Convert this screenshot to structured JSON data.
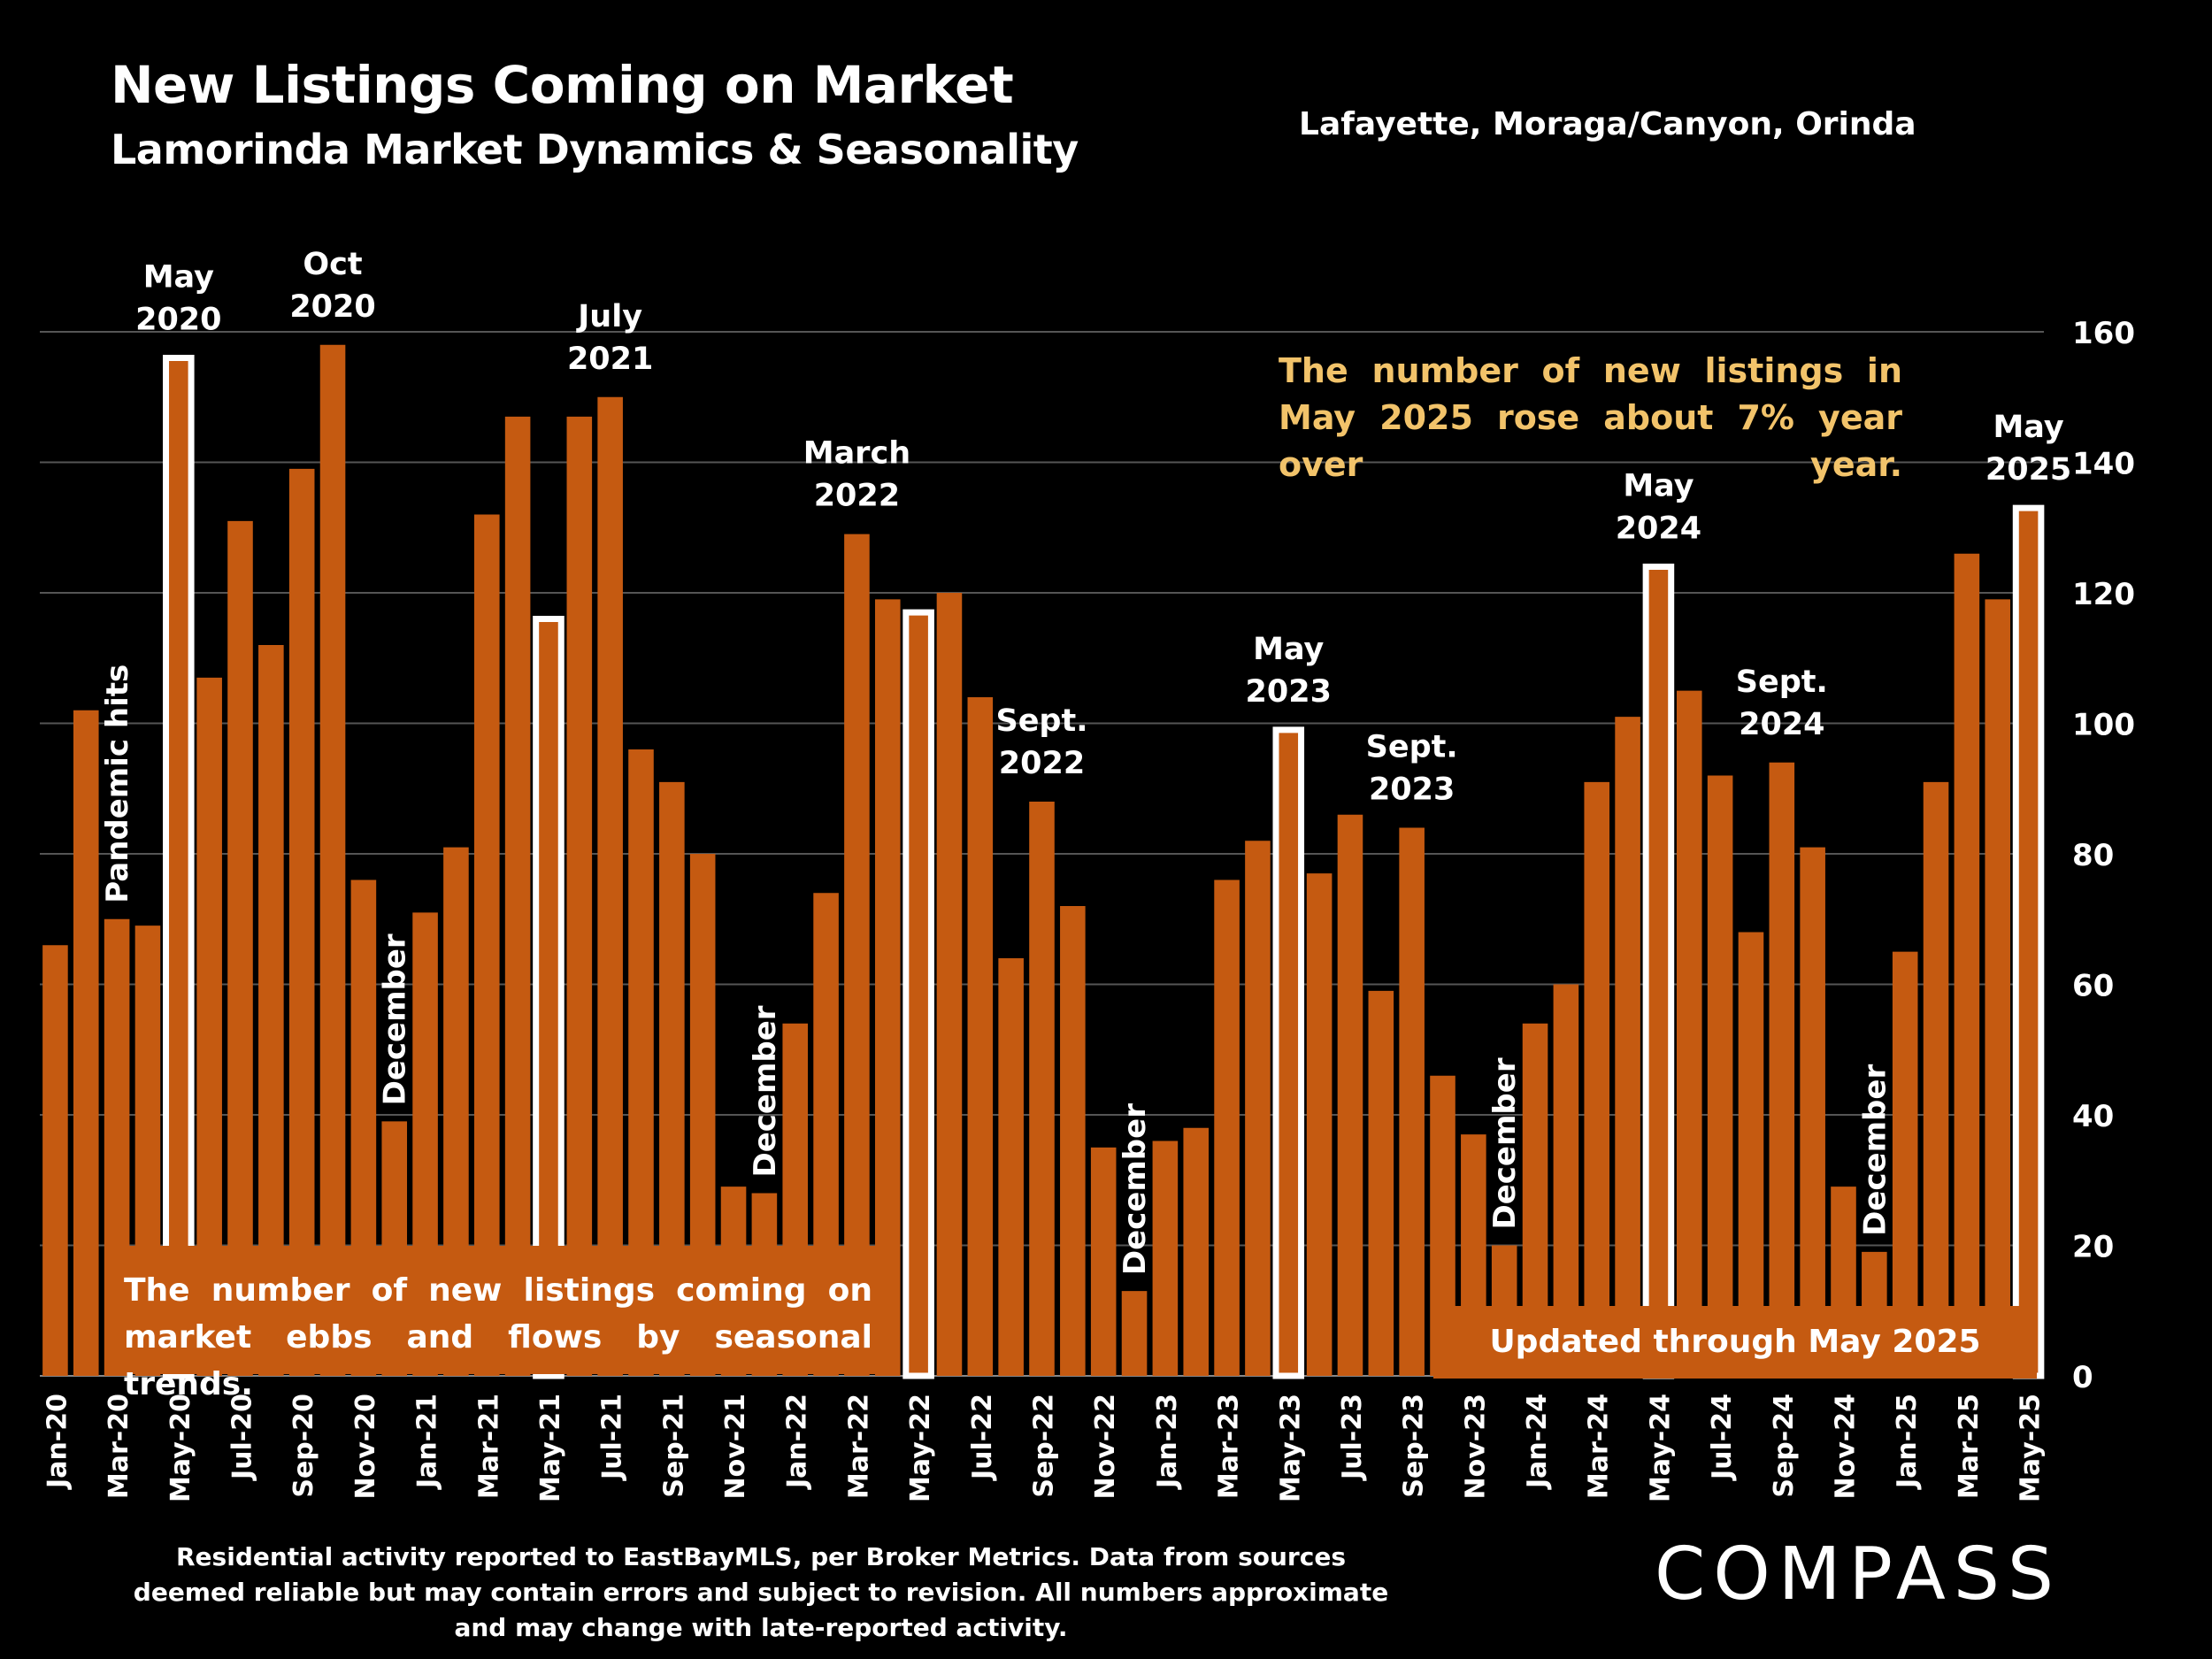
{
  "header": {
    "title": "New Listings Coming on Market",
    "subtitle": "Lamorinda Market Dynamics & Seasonality",
    "region": "Lafayette, Moraga/Canyon, Orinda"
  },
  "note": "The number of new listings in May 2025 rose about 7% year over year.",
  "box_left": "The number of new listings coming on market ebbs and flows by seasonal trends.",
  "box_right": "Updated through May 2025",
  "footer": "Residential activity reported to EastBayMLS, per Broker Metrics. Data from sources deemed reliable but may contain errors and subject to revision. All numbers approximate and may change with late-reported activity.",
  "logo": "COMPASS",
  "colors": {
    "bar": "#c55a11",
    "highlight_outline": "#ffffff",
    "note": "#f2c36a",
    "grid": "#555555"
  },
  "chart_data": {
    "type": "bar",
    "xlabel": "",
    "ylabel": "",
    "ylim": [
      0,
      160
    ],
    "yticks": [
      0,
      20,
      40,
      60,
      80,
      100,
      120,
      140,
      160
    ],
    "grid": true,
    "categories": [
      "Jan-20",
      "Feb-20",
      "Mar-20",
      "Apr-20",
      "May-20",
      "Jun-20",
      "Jul-20",
      "Aug-20",
      "Sep-20",
      "Oct-20",
      "Nov-20",
      "Dec-20",
      "Jan-21",
      "Feb-21",
      "Mar-21",
      "Apr-21",
      "May-21",
      "Jun-21",
      "Jul-21",
      "Aug-21",
      "Sep-21",
      "Oct-21",
      "Nov-21",
      "Dec-21",
      "Jan-22",
      "Feb-22",
      "Mar-22",
      "Apr-22",
      "May-22",
      "Jun-22",
      "Jul-22",
      "Aug-22",
      "Sep-22",
      "Oct-22",
      "Nov-22",
      "Dec-22",
      "Jan-23",
      "Feb-23",
      "Mar-23",
      "Apr-23",
      "May-23",
      "Jun-23",
      "Jul-23",
      "Aug-23",
      "Sep-23",
      "Oct-23",
      "Nov-23",
      "Dec-23",
      "Jan-24",
      "Feb-24",
      "Mar-24",
      "Apr-24",
      "May-24",
      "Jun-24",
      "Jul-24",
      "Aug-24",
      "Sep-24",
      "Oct-24",
      "Nov-24",
      "Dec-24",
      "Jan-25",
      "Feb-25",
      "Mar-25",
      "Apr-25",
      "May-25"
    ],
    "values": [
      66,
      102,
      70,
      69,
      156,
      107,
      131,
      112,
      139,
      158,
      76,
      39,
      71,
      81,
      132,
      147,
      116,
      147,
      150,
      96,
      91,
      80,
      29,
      28,
      54,
      74,
      129,
      119,
      117,
      120,
      104,
      64,
      88,
      72,
      35,
      13,
      36,
      38,
      76,
      82,
      99,
      77,
      86,
      59,
      84,
      46,
      37,
      20,
      54,
      60,
      91,
      101,
      124,
      105,
      92,
      68,
      94,
      81,
      29,
      19,
      65,
      91,
      126,
      119,
      133
    ],
    "tick_labels": [
      "Jan-20",
      "Mar-20",
      "May-20",
      "Jul-20",
      "Sep-20",
      "Nov-20",
      "Jan-21",
      "Mar-21",
      "May-21",
      "Jul-21",
      "Sep-21",
      "Nov-21",
      "Jan-22",
      "Mar-22",
      "May-22",
      "Jul-22",
      "Sep-22",
      "Nov-22",
      "Jan-23",
      "Mar-23",
      "May-23",
      "Jul-23",
      "Sep-23",
      "Nov-23",
      "Jan-24",
      "Mar-24",
      "May-24",
      "Jul-24",
      "Sep-24",
      "Nov-24",
      "Jan-25",
      "Mar-25",
      "May-25"
    ],
    "highlighted": [
      "May-20",
      "May-21",
      "May-22",
      "May-23",
      "May-24",
      "May-25"
    ],
    "annotations": [
      {
        "at": "May-20",
        "lines": [
          "May",
          "2020"
        ]
      },
      {
        "at": "Oct-20",
        "lines": [
          "Oct",
          "2020"
        ]
      },
      {
        "at": "Jul-21",
        "lines": [
          "July",
          "2021"
        ]
      },
      {
        "at": "Mar-22",
        "lines": [
          "March",
          "2022"
        ]
      },
      {
        "at": "Sep-22",
        "lines": [
          "Sept.",
          "2022"
        ]
      },
      {
        "at": "May-23",
        "lines": [
          "May",
          "2023"
        ]
      },
      {
        "at": "Sep-23",
        "lines": [
          "Sept.",
          "2023"
        ]
      },
      {
        "at": "May-24",
        "lines": [
          "May",
          "2024"
        ]
      },
      {
        "at": "Sep-24",
        "lines": [
          "Sept.",
          "2024"
        ]
      },
      {
        "at": "May-25",
        "lines": [
          "May",
          "2025"
        ]
      }
    ],
    "vertical_annotations": [
      {
        "at": "Mar-20",
        "text": "Pandemic hits"
      },
      {
        "at": "Dec-20",
        "text": "December"
      },
      {
        "at": "Dec-21",
        "text": "December"
      },
      {
        "at": "Dec-22",
        "text": "December"
      },
      {
        "at": "Dec-23",
        "text": "December"
      },
      {
        "at": "Dec-24",
        "text": "December"
      }
    ]
  }
}
